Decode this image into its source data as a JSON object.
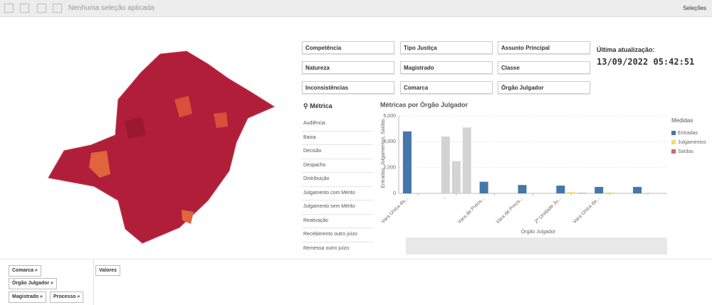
{
  "toolbar": {
    "selection_status": "Nenhuma seleção aplicada",
    "selections_button": "Seleções"
  },
  "filters": [
    "Competência",
    "Tipo Justiça",
    "Assunto Principal",
    "Natureza",
    "Magistrado",
    "Classe",
    "Inconsistências",
    "Comarca",
    "Órgão Julgador"
  ],
  "last_update": {
    "label": "Última atualização:",
    "value": "13/09/2022 05:42:51"
  },
  "metric_panel": {
    "search_label": "Métrica",
    "items": [
      "Audiência",
      "Baixa",
      "Decisão",
      "Despacho",
      "Distribuição",
      "Julgamento com Mérito",
      "Julgamento sem Mérito",
      "Reativação",
      "Recebimento outro juízo",
      "Remessa outro juízo"
    ]
  },
  "chart_data": {
    "type": "bar",
    "title": "Métricas por Órgão Julgador",
    "y_label": "Entradas, Julgamentos, Saídas",
    "x_label": "Órgão Julgador",
    "legend_title": "Medidas",
    "categories": [
      "Vara Única da...",
      "-",
      "Vara de Preca...",
      "Vara de Preca...",
      "2ª Unidade Ju...",
      "Vara Única da...",
      null
    ],
    "category_colors": [
      null,
      "#d3d3d3",
      null,
      null,
      null,
      null,
      null
    ],
    "series": [
      {
        "name": "Entradas",
        "color": "#4477aa",
        "values": [
          4800,
          4400,
          900,
          650,
          600,
          500,
          500
        ]
      },
      {
        "name": "Julgamentos",
        "color": "#eedd77",
        "values": [
          0,
          2500,
          0,
          0,
          100,
          80,
          0
        ]
      },
      {
        "name": "Saídas",
        "color": "#cc6677",
        "values": [
          0,
          5100,
          0,
          0,
          30,
          0,
          0
        ]
      }
    ],
    "ylim": [
      0,
      6000
    ],
    "yticks": [
      0,
      {
        "value": 2000,
        "label": "2,000"
      },
      {
        "value": 4000,
        "label": "4,000"
      },
      {
        "value": 6000,
        "label": "6,000"
      }
    ],
    "grid": true
  },
  "bottom": {
    "buttons": [
      "Comarca",
      "Órgão Julgador",
      "Magistrado",
      "Processo"
    ],
    "values_label": "Valores"
  }
}
